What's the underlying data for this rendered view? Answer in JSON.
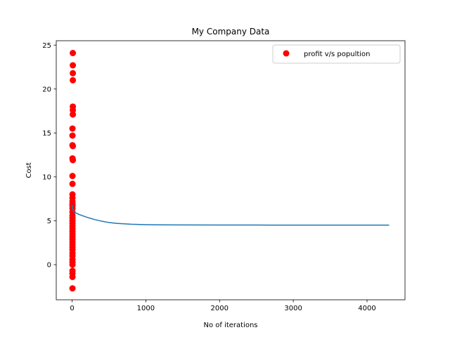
{
  "chart_data": {
    "type": "scatter",
    "title": "My Company Data",
    "xlabel": "No of iterations",
    "ylabel": "Cost",
    "xlim": [
      -215,
      4515
    ],
    "ylim": [
      -4,
      25.5
    ],
    "x_ticks": [
      0,
      1000,
      2000,
      3000,
      4000
    ],
    "y_ticks": [
      0,
      5,
      10,
      15,
      20,
      25
    ],
    "x_tick_labels": [
      "0",
      "1000",
      "2000",
      "3000",
      "4000"
    ],
    "y_tick_labels": [
      "0",
      "5",
      "10",
      "15",
      "20",
      "25"
    ],
    "grid": false,
    "legend_position": "upper right",
    "series": [
      {
        "name": "profit v/s popultion",
        "kind": "scatter",
        "color": "#ff0000",
        "points": [
          [
            10,
            24.1
          ],
          [
            10,
            22.7
          ],
          [
            10,
            21.8
          ],
          [
            10,
            21.0
          ],
          [
            10,
            18.0
          ],
          [
            10,
            17.6
          ],
          [
            10,
            17.1
          ],
          [
            5,
            15.5
          ],
          [
            5,
            14.7
          ],
          [
            5,
            13.6
          ],
          [
            10,
            13.5
          ],
          [
            5,
            12.1
          ],
          [
            10,
            11.9
          ],
          [
            5,
            10.1
          ],
          [
            5,
            9.2
          ],
          [
            5,
            8.0
          ],
          [
            5,
            7.6
          ],
          [
            5,
            7.2
          ],
          [
            5,
            6.9
          ],
          [
            5,
            6.7
          ],
          [
            5,
            6.4
          ],
          [
            5,
            6.0
          ],
          [
            5,
            5.6
          ],
          [
            5,
            5.3
          ],
          [
            5,
            5.0
          ],
          [
            5,
            4.7
          ],
          [
            5,
            4.4
          ],
          [
            5,
            4.1
          ],
          [
            5,
            3.8
          ],
          [
            5,
            3.5
          ],
          [
            5,
            3.2
          ],
          [
            5,
            2.9
          ],
          [
            5,
            2.6
          ],
          [
            5,
            2.3
          ],
          [
            5,
            2.0
          ],
          [
            5,
            1.7
          ],
          [
            5,
            1.3
          ],
          [
            5,
            1.0
          ],
          [
            5,
            0.6
          ],
          [
            5,
            0.3
          ],
          [
            5,
            0.0
          ],
          [
            5,
            -0.7
          ],
          [
            5,
            -1.0
          ],
          [
            5,
            -1.4
          ],
          [
            5,
            -2.7
          ]
        ]
      },
      {
        "kind": "line",
        "color": "#1f77b4",
        "points": [
          [
            0,
            6.8
          ],
          [
            5,
            6.5
          ],
          [
            15,
            6.2
          ],
          [
            30,
            6.0
          ],
          [
            60,
            5.85
          ],
          [
            100,
            5.7
          ],
          [
            200,
            5.4
          ],
          [
            300,
            5.15
          ],
          [
            400,
            4.95
          ],
          [
            500,
            4.8
          ],
          [
            600,
            4.7
          ],
          [
            800,
            4.6
          ],
          [
            1000,
            4.55
          ],
          [
            1200,
            4.53
          ],
          [
            1500,
            4.52
          ],
          [
            2000,
            4.51
          ],
          [
            2500,
            4.51
          ],
          [
            3000,
            4.5
          ],
          [
            3500,
            4.5
          ],
          [
            4000,
            4.5
          ],
          [
            4300,
            4.5
          ]
        ]
      }
    ]
  }
}
